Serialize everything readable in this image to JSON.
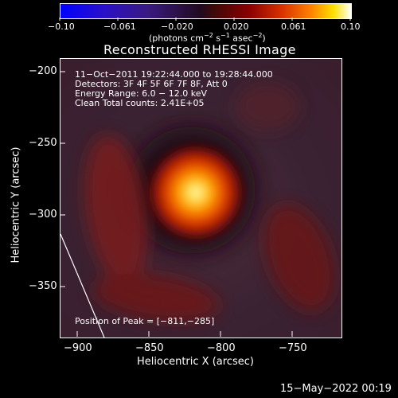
{
  "colorbar": {
    "tick_labels": [
      "−0.10",
      "−0.061",
      "−0.020",
      "0.020",
      "0.061",
      "0.10"
    ],
    "units_text": "(photons cm",
    "units_exp1": "−2",
    "units_mid": " s",
    "units_exp2": "−1",
    "units_tail": " asec",
    "units_exp3": "−2",
    "units_close": ")"
  },
  "image": {
    "title": "Reconstructed RHESSI Image",
    "info_lines": [
      "11−Oct−2011 19:22:44.000 to 19:28:44.000",
      "Detectors: 3F 4F 5F 6F 7F 8F, Att 0",
      "Energy Range: 6.0 − 12.0 keV",
      "Clean     Total counts: 2.41E+05"
    ],
    "peak_text": "Position of Peak = [−811,−285]"
  },
  "axes": {
    "xlabel": "Heliocentric X (arcsec)",
    "ylabel": "Heliocentric Y (arcsec)",
    "x_ticks": [
      "−900",
      "−850",
      "−800",
      "−750"
    ],
    "y_ticks": [
      "−200",
      "−250",
      "−300",
      "−350"
    ]
  },
  "footer": {
    "timestamp": "15−May−2022 00:19"
  },
  "map_data": {
    "x_range": [
      -912,
      -716
    ],
    "y_range": [
      -383,
      -188
    ],
    "peak": [
      -811,
      -285
    ],
    "colormap": [
      "#0000ff",
      "#4b0082",
      "#1a001a",
      "#8b0000",
      "#ff4500",
      "#ffff00",
      "#ffffff"
    ]
  }
}
